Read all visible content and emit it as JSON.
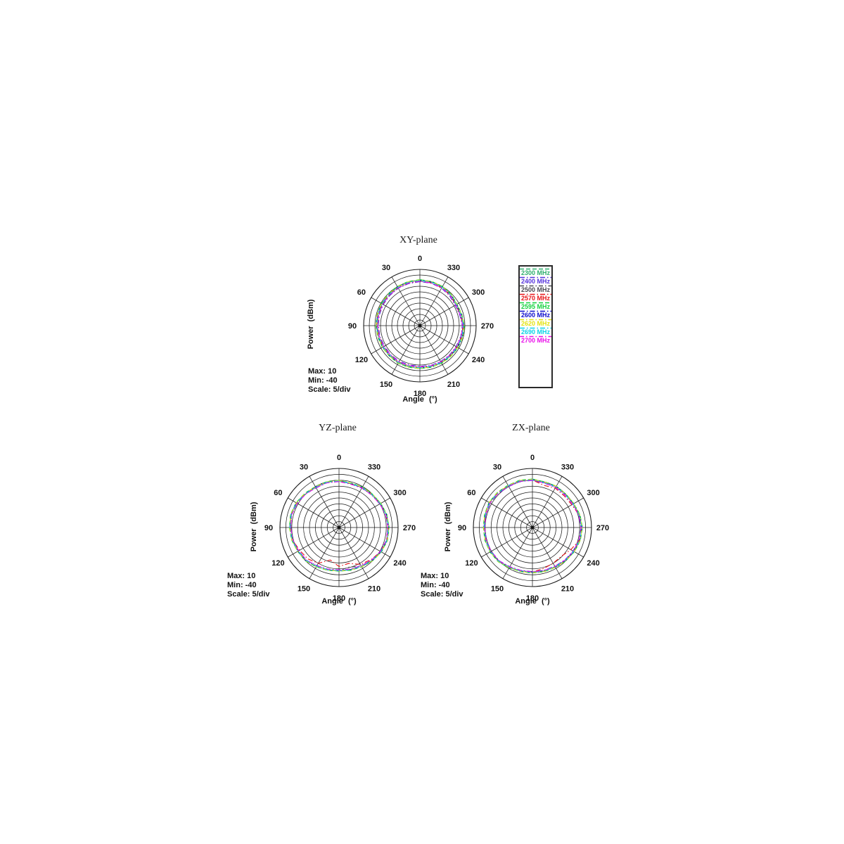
{
  "figure": {
    "background": "#ffffff"
  },
  "chart_data": [
    {
      "id": "xy",
      "type": "polar-line",
      "title": "XY-plane",
      "xlabel": "Angle (°)",
      "ylabel": "Power (dBm)",
      "r_max": 10,
      "r_min": -40,
      "scale_per_division": 5,
      "annotations": [
        "Max: 10",
        "Min: -40",
        "Scale: 5/div"
      ],
      "angle_direction": "counterclockwise",
      "angle_ticks_deg": [
        0,
        30,
        60,
        90,
        120,
        150,
        180,
        210,
        240,
        270,
        300,
        330
      ],
      "angles_deg": [
        0,
        15,
        30,
        45,
        60,
        75,
        90,
        105,
        120,
        135,
        150,
        165,
        180,
        195,
        210,
        225,
        240,
        255,
        270,
        285,
        300,
        315,
        330,
        345
      ],
      "series": [
        {
          "name": "2300 MHz",
          "color": "#2fae6e",
          "dash": "6 3",
          "values": [
            0.8,
            0.1,
            0.0,
            -0.7,
            -0.5,
            -1.1,
            -1.0,
            -1.7,
            -1.5,
            -2.1,
            -1.4,
            -2.2,
            -2.0,
            -2.1,
            -1.5,
            -1.8,
            -1.0,
            -1.2,
            -0.5,
            -1.9,
            -2.0,
            -1.1,
            0.2,
            0.3
          ]
        },
        {
          "name": "2400 MHz",
          "color": "#5533dd",
          "dash": "7 3 1.5 3",
          "values": [
            -0.9,
            -1.4,
            -1.6,
            -2.2,
            -2.4,
            -2.7,
            -3.1,
            -3.2,
            -3.6,
            -3.3,
            -3.5,
            -3.8,
            -3.9,
            -3.4,
            -3.2,
            -3.0,
            -2.9,
            -2.5,
            -2.3,
            -3.4,
            -3.8,
            -2.6,
            -1.6,
            -1.0
          ]
        },
        {
          "name": "2500 MHz",
          "color": "#4a4a52",
          "dash": "6 3 1.5 3",
          "values": [
            0.3,
            -0.1,
            -0.6,
            -0.9,
            -1.2,
            -1.3,
            -1.6,
            -1.9,
            -2.1,
            -2.3,
            -2.0,
            -2.4,
            -2.6,
            -2.3,
            -2.1,
            -1.9,
            -1.7,
            -1.3,
            -1.1,
            -2.1,
            -2.6,
            -1.3,
            -0.4,
            0.1
          ]
        },
        {
          "name": "2570 MHz",
          "color": "#e81418",
          "dash": "7 3 1.5 3",
          "values": [
            -0.3,
            -0.7,
            -1.1,
            -1.5,
            -1.8,
            -1.9,
            -2.1,
            -2.5,
            -2.7,
            -2.9,
            -2.6,
            -3.0,
            -3.2,
            -2.8,
            -2.7,
            -2.4,
            -2.1,
            -1.8,
            -1.7,
            -2.8,
            -3.1,
            -1.9,
            -1.0,
            -0.5
          ]
        },
        {
          "name": "2595 MHz",
          "color": "#16d23e",
          "dash": "6 3",
          "values": [
            0.9,
            0.6,
            0.2,
            -0.2,
            -0.4,
            -0.7,
            -0.9,
            -1.2,
            -1.4,
            -1.6,
            -1.3,
            -1.7,
            -1.9,
            -1.6,
            -1.4,
            -1.2,
            -0.9,
            -0.6,
            -0.4,
            -1.4,
            -1.9,
            -0.6,
            0.3,
            0.7
          ]
        },
        {
          "name": "2600 MHz",
          "color": "#0d0dcc",
          "dash": "7 3 1.5 3",
          "values": [
            0.4,
            0.1,
            -0.4,
            -0.7,
            -0.9,
            -1.1,
            -1.4,
            -1.7,
            -1.9,
            -2.1,
            -1.8,
            -2.2,
            -2.4,
            -2.1,
            -1.9,
            -1.7,
            -1.4,
            -1.1,
            -0.9,
            -1.9,
            -2.4,
            -1.1,
            -0.2,
            0.2
          ]
        },
        {
          "name": "2620 MHz",
          "color": "#e3e312",
          "dash": "6 3 1.5 3",
          "values": [
            0.7,
            0.4,
            -0.1,
            -0.4,
            -0.6,
            -0.8,
            -1.1,
            -1.4,
            -1.6,
            -1.8,
            -1.5,
            -1.9,
            -2.1,
            -1.8,
            -1.6,
            -1.4,
            -1.1,
            -0.8,
            -0.6,
            -1.6,
            -2.1,
            -0.8,
            0.1,
            0.5
          ]
        },
        {
          "name": "2690 MHz",
          "color": "#0cd2e8",
          "dash": "7 3 1.5 3",
          "values": [
            0.1,
            -0.2,
            -0.7,
            -1.0,
            -1.2,
            -1.4,
            -1.7,
            -2.0,
            -2.2,
            -2.4,
            -2.1,
            -2.5,
            -2.7,
            -2.4,
            -2.2,
            -2.0,
            -1.7,
            -1.4,
            -1.2,
            -2.2,
            -2.7,
            -1.4,
            -0.5,
            -0.1
          ]
        },
        {
          "name": "2700 MHz",
          "color": "#ea10ea",
          "dash": "6 3 1.5 3",
          "values": [
            -0.6,
            -0.9,
            -1.4,
            -1.7,
            -1.9,
            -2.1,
            -2.4,
            -2.7,
            -2.9,
            -3.1,
            -2.8,
            -3.2,
            -3.4,
            -3.1,
            -2.9,
            -2.7,
            -2.4,
            -2.1,
            -1.9,
            -2.9,
            -3.4,
            -2.1,
            -1.2,
            -0.8
          ]
        }
      ]
    },
    {
      "id": "yz",
      "type": "polar-line",
      "title": "YZ-plane",
      "xlabel": "Angle (°)",
      "ylabel": "Power (dBm)",
      "r_max": 10,
      "r_min": -40,
      "scale_per_division": 5,
      "annotations": [
        "Max: 10",
        "Min: -40",
        "Scale: 5/div"
      ],
      "angle_direction": "counterclockwise",
      "angle_ticks_deg": [
        0,
        30,
        60,
        90,
        120,
        150,
        180,
        210,
        240,
        270,
        300,
        330
      ],
      "angles_deg": [
        0,
        15,
        30,
        45,
        60,
        75,
        90,
        105,
        120,
        135,
        150,
        165,
        180,
        195,
        210,
        225,
        240,
        255,
        270,
        285,
        300,
        315,
        330,
        345
      ],
      "series": [
        {
          "name": "2300 MHz",
          "color": "#2fae6e",
          "dash": "6 3",
          "values": [
            0.0,
            -0.4,
            -0.3,
            0.4,
            2.0,
            1.9,
            2.0,
            0.9,
            0.5,
            -0.6,
            -1.5,
            -3.1,
            -3.0,
            -3.1,
            -1.5,
            -0.6,
            1.5,
            1.9,
            2.5,
            1.4,
            1.0,
            -0.6,
            -0.3,
            -1.6
          ]
        },
        {
          "name": "2400 MHz",
          "color": "#5533dd",
          "dash": "7 3 1.5 3",
          "values": [
            -1.2,
            -0.6,
            -1.3,
            0.2,
            0.8,
            1.7,
            0.8,
            0.7,
            -0.8,
            -0.8,
            -2.8,
            -3.3,
            -4.2,
            -3.3,
            -2.8,
            -0.8,
            0.3,
            1.7,
            1.3,
            1.2,
            -0.2,
            -0.8,
            -1.5,
            -1.8
          ]
        },
        {
          "name": "2500 MHz",
          "color": "#4a4a52",
          "dash": "6 3 1.5 3",
          "values": [
            -0.5,
            -0.1,
            -0.5,
            0.7,
            1.5,
            2.2,
            1.5,
            1.2,
            0.0,
            -0.3,
            -2.0,
            -2.8,
            -3.5,
            -5.5,
            -2.0,
            -0.3,
            1.0,
            2.2,
            2.0,
            1.7,
            0.5,
            -0.3,
            -0.8,
            -1.3
          ]
        },
        {
          "name": "2570 MHz",
          "color": "#e81418",
          "dash": "7 3 1.5 3",
          "values": [
            -0.8,
            -0.5,
            -0.8,
            0.3,
            1.2,
            1.8,
            1.2,
            0.8,
            -1.5,
            -2.5,
            -5.0,
            -11.5,
            -7.0,
            -8.5,
            -4.0,
            -1.5,
            0.7,
            1.8,
            1.7,
            1.2,
            0.2,
            -0.8,
            -1.1,
            -1.8
          ]
        },
        {
          "name": "2595 MHz",
          "color": "#16d23e",
          "dash": "6 3",
          "values": [
            -0.1,
            0.2,
            -0.1,
            1.0,
            1.9,
            2.5,
            1.9,
            1.5,
            0.4,
            0.0,
            -1.6,
            -2.5,
            -3.1,
            -2.5,
            -1.6,
            0.0,
            1.4,
            2.5,
            2.4,
            2.0,
            0.9,
            -0.1,
            -0.4,
            -1.0
          ]
        },
        {
          "name": "2600 MHz",
          "color": "#0d0dcc",
          "dash": "7 3 1.5 3",
          "values": [
            -0.4,
            -0.2,
            -0.3,
            0.6,
            1.7,
            2.1,
            1.6,
            1.1,
            0.1,
            -0.4,
            -1.9,
            -2.9,
            -3.4,
            -2.9,
            -1.8,
            -0.4,
            1.1,
            2.1,
            2.1,
            1.6,
            0.6,
            -0.4,
            -0.7,
            -1.4
          ]
        },
        {
          "name": "2620 MHz",
          "color": "#e3e312",
          "dash": "6 3 1.5 3",
          "values": [
            -0.2,
            0.0,
            -0.2,
            0.8,
            1.8,
            2.3,
            1.8,
            1.3,
            0.3,
            -0.2,
            -1.7,
            -2.7,
            -3.2,
            -2.7,
            -1.7,
            -0.2,
            1.3,
            2.3,
            2.3,
            1.8,
            0.8,
            -0.2,
            -0.5,
            -1.2
          ]
        },
        {
          "name": "2690 MHz",
          "color": "#0cd2e8",
          "dash": "7 3 1.5 3",
          "values": [
            -0.6,
            -0.4,
            -0.6,
            0.4,
            1.4,
            1.9,
            1.4,
            0.9,
            -0.1,
            -0.6,
            -2.1,
            -3.1,
            -3.6,
            -3.1,
            -2.1,
            -0.6,
            0.9,
            1.9,
            1.9,
            1.4,
            0.4,
            -0.6,
            -0.9,
            -1.6
          ]
        },
        {
          "name": "2700 MHz",
          "color": "#ea10ea",
          "dash": "6 3 1.5 3",
          "values": [
            -1.1,
            -0.9,
            -1.1,
            -0.1,
            0.9,
            1.4,
            0.9,
            0.4,
            -0.6,
            -1.1,
            -2.6,
            -3.6,
            -4.1,
            -3.6,
            -2.6,
            -1.1,
            0.4,
            1.4,
            1.4,
            0.9,
            -0.1,
            -1.1,
            -1.4,
            -2.1
          ]
        }
      ]
    },
    {
      "id": "zx",
      "type": "polar-line",
      "title": "ZX-plane",
      "xlabel": "Angle (°)",
      "ylabel": "Power (dBm)",
      "r_max": 10,
      "r_min": -40,
      "scale_per_division": 5,
      "annotations": [
        "Max: 10",
        "Min: -40",
        "Scale: 5/div"
      ],
      "angle_direction": "counterclockwise",
      "angle_ticks_deg": [
        0,
        30,
        60,
        90,
        120,
        150,
        180,
        210,
        240,
        270,
        300,
        330
      ],
      "angles_deg": [
        0,
        15,
        30,
        45,
        60,
        75,
        90,
        105,
        120,
        135,
        150,
        165,
        180,
        195,
        210,
        225,
        240,
        255,
        270,
        285,
        300,
        315,
        330,
        345
      ],
      "series": [
        {
          "name": "2300 MHz",
          "color": "#2fae6e",
          "dash": "6 3",
          "values": [
            0.9,
            1.2,
            1.0,
            1.8,
            2.1,
            1.8,
            1.1,
            1.5,
            1.1,
            0.8,
            -0.9,
            -1.5,
            -1.9,
            -1.5,
            -1.4,
            -0.2,
            0.6,
            1.8,
            1.9,
            1.5,
            0.1,
            -0.2,
            0.3,
            -0.2
          ]
        },
        {
          "name": "2400 MHz",
          "color": "#5533dd",
          "dash": "7 3 1.5 3",
          "values": [
            -0.2,
            0.3,
            0.1,
            0.8,
            1.3,
            0.8,
            0.3,
            0.5,
            0.3,
            -0.2,
            -1.7,
            -2.5,
            -2.7,
            -2.5,
            -2.2,
            -1.2,
            -0.2,
            0.8,
            1.1,
            0.5,
            -0.7,
            -1.2,
            -0.7,
            -1.2
          ]
        },
        {
          "name": "2500 MHz",
          "color": "#4a4a52",
          "dash": "6 3 1.5 3",
          "values": [
            0.4,
            0.9,
            0.7,
            1.4,
            1.9,
            1.4,
            0.9,
            1.1,
            0.9,
            0.4,
            -1.1,
            -1.9,
            -2.1,
            -1.9,
            -1.6,
            -0.6,
            0.4,
            1.4,
            1.7,
            1.1,
            -0.1,
            -0.6,
            -0.1,
            -0.6
          ]
        },
        {
          "name": "2570 MHz",
          "color": "#e81418",
          "dash": "7 3 1.5 3",
          "values": [
            0.2,
            0.7,
            0.5,
            1.2,
            1.7,
            1.2,
            0.7,
            0.9,
            0.7,
            0.2,
            -1.3,
            -2.1,
            -2.3,
            -4.0,
            -5.0,
            -5.5,
            -2.5,
            1.2,
            1.5,
            0.9,
            -1.5,
            -2.0,
            -1.5,
            -3.0
          ]
        },
        {
          "name": "2595 MHz",
          "color": "#16d23e",
          "dash": "6 3",
          "values": [
            1.0,
            1.5,
            1.3,
            2.0,
            2.5,
            2.0,
            1.5,
            1.7,
            1.5,
            1.0,
            -0.5,
            -1.3,
            -1.5,
            -1.3,
            -1.0,
            0.0,
            1.0,
            2.0,
            2.3,
            1.7,
            0.5,
            0.0,
            0.5,
            0.0
          ]
        },
        {
          "name": "2600 MHz",
          "color": "#0d0dcc",
          "dash": "7 3 1.5 3",
          "values": [
            0.6,
            0.9,
            0.9,
            1.4,
            2.1,
            1.4,
            1.1,
            1.1,
            1.1,
            0.4,
            -0.9,
            -1.9,
            -1.9,
            -1.9,
            -1.4,
            -0.6,
            0.6,
            1.4,
            1.9,
            1.1,
            0.1,
            -0.6,
            0.1,
            -0.6
          ]
        },
        {
          "name": "2620 MHz",
          "color": "#e3e312",
          "dash": "6 3 1.5 3",
          "values": [
            0.8,
            1.3,
            1.1,
            1.8,
            2.3,
            1.8,
            1.3,
            1.5,
            1.3,
            0.8,
            -0.7,
            -1.5,
            -1.7,
            -1.5,
            -1.2,
            -0.2,
            0.8,
            1.8,
            2.1,
            1.5,
            0.3,
            -0.2,
            0.3,
            -0.2
          ]
        },
        {
          "name": "2690 MHz",
          "color": "#0cd2e8",
          "dash": "7 3 1.5 3",
          "values": [
            0.3,
            0.8,
            0.6,
            1.3,
            1.8,
            1.3,
            0.8,
            1.0,
            0.8,
            0.3,
            -1.2,
            -2.0,
            -2.2,
            -2.0,
            -1.7,
            -0.7,
            0.3,
            1.3,
            1.6,
            1.0,
            -0.2,
            -0.7,
            -0.2,
            -0.7
          ]
        },
        {
          "name": "2700 MHz",
          "color": "#ea10ea",
          "dash": "6 3 1.5 3",
          "values": [
            0.0,
            0.5,
            0.3,
            1.0,
            1.5,
            1.0,
            0.5,
            0.7,
            0.5,
            0.0,
            -1.5,
            -2.3,
            -2.5,
            -2.3,
            -2.0,
            -1.0,
            0.0,
            1.0,
            1.3,
            0.7,
            -0.5,
            -1.0,
            -0.5,
            -1.0
          ]
        }
      ]
    }
  ]
}
